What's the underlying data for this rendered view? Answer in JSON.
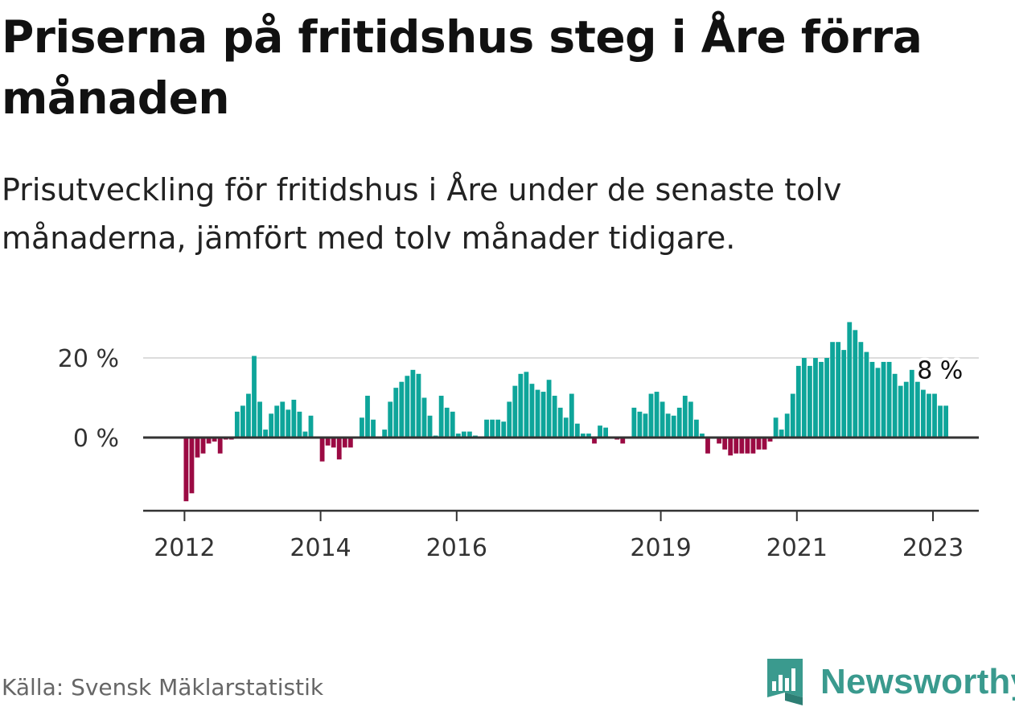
{
  "header": {
    "title": "Priserna på fritidshus steg i Åre förra månaden",
    "subtitle": "Prisutveckling för fritidshus i Åre under de senaste tolv månaderna, jämfört med tolv månader tidigare."
  },
  "footer": {
    "source": "Källa: Svensk Mäklarstatistik",
    "brand": "Newsworthy"
  },
  "colors": {
    "positive": "#0ea59a",
    "negative": "#9b0a43",
    "brand": "#3a9a8e"
  },
  "chart_data": {
    "type": "bar",
    "title": "Priserna på fritidshus steg i Åre förra månaden",
    "start": "2012-01",
    "end": "2023-02",
    "yticks": [
      0,
      20
    ],
    "ytick_labels": [
      "0 %",
      "20 %"
    ],
    "xticks": [
      "2012",
      "2014",
      "2016",
      "2019",
      "2021",
      "2023"
    ],
    "ylim": [
      -18,
      30
    ],
    "grid": true,
    "last_value_label": "8 %",
    "values": [
      -16,
      -14,
      -5,
      -4,
      -1.5,
      -1,
      -4,
      -0.5,
      -0.5,
      6.5,
      8,
      11,
      20.5,
      9,
      2,
      6,
      8,
      9,
      7,
      9.5,
      6.5,
      1.5,
      5.5,
      0,
      -6,
      -2,
      -2.5,
      -5.5,
      -2.5,
      -2.5,
      0,
      5,
      10.5,
      4.5,
      0,
      2,
      9,
      12.5,
      14,
      15.5,
      17,
      16,
      10,
      5.5,
      0.5,
      10.5,
      7.5,
      6.5,
      1,
      1.5,
      1.5,
      0.5,
      0,
      4.5,
      4.5,
      4.5,
      4,
      9,
      13,
      16,
      16.5,
      13.5,
      12,
      11.5,
      14.5,
      10.5,
      7.5,
      5,
      11,
      3.5,
      1,
      1,
      -1.5,
      3,
      2.5,
      0,
      -0.5,
      -1.5,
      0,
      7.5,
      6.5,
      6,
      11,
      11.5,
      9,
      6,
      5.5,
      7.5,
      10.5,
      9,
      4.5,
      1,
      -4,
      0,
      -1.5,
      -3,
      -4.5,
      -4,
      -4,
      -4,
      -4,
      -3,
      -3,
      -1,
      5,
      2,
      6,
      11,
      18,
      20,
      18,
      20,
      19,
      20,
      24,
      24,
      22,
      29,
      27,
      24,
      21.5,
      19,
      17.5,
      19,
      19,
      16,
      13,
      14,
      17,
      14,
      12,
      11,
      11,
      8,
      8
    ]
  }
}
